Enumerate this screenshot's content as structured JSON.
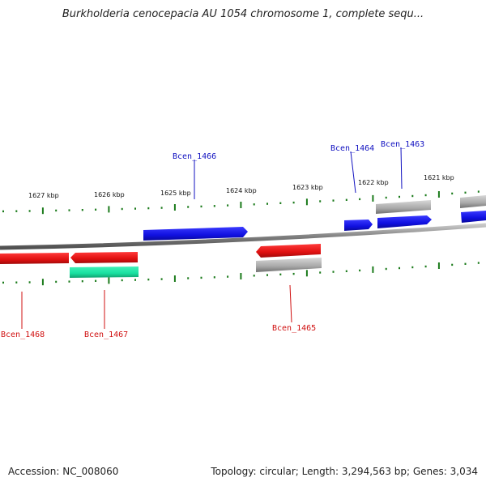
{
  "header": {
    "title": "Burkholderia cenocepacia AU 1054 chromosome 1, complete sequ..."
  },
  "footer": {
    "accession": "Accession: NC_008060",
    "stats": "Topology: circular; Length: 3,294,563 bp; Genes: 3,034"
  },
  "colors": {
    "forward": "#1010e0",
    "reverse": "#e01010",
    "rna": "#19e0a0",
    "other": "#a0a0a0",
    "backbone": "#808080",
    "ticks": "#1a7a1a"
  },
  "scale_labels": [
    "1627 kbp",
    "1626 kbp",
    "1625 kbp",
    "1624 kbp",
    "1623 kbp",
    "1622 kbp",
    "1621 kbp"
  ],
  "gene_labels": [
    "Bcen_1466",
    "Bcen_1464",
    "Bcen_1463",
    "Bcen_1468",
    "Bcen_1467",
    "Bcen_1465"
  ]
}
